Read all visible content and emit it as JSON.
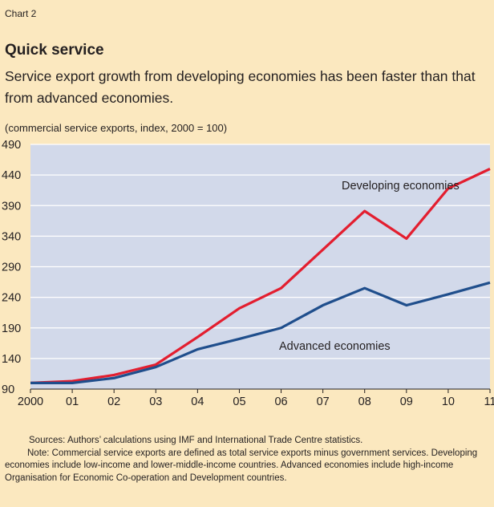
{
  "chart_label": "Chart 2",
  "title": "Quick service",
  "subtitle": "Service export growth from developing economies has been faster than that from advanced economies.",
  "units_note": "(commercial service exports, index, 2000 = 100)",
  "sources": {
    "line1": "Sources: Authors’ calculations using IMF and International Trade Centre statistics.",
    "line2": "Note: Commercial service exports are defined as total service exports minus government services. Developing economies include low-income and lower-middle-income countries. Advanced economies include high-income Organisation for Economic Co-operation and Development countries."
  },
  "colors": {
    "background": "#fbe8bf",
    "plot_area": "#d2d9ea",
    "gridline": "#ffffff",
    "developing": "#e31e2f",
    "advanced": "#1f4e8c"
  },
  "chart_data": {
    "type": "line",
    "x": [
      "2000",
      "01",
      "02",
      "03",
      "04",
      "05",
      "06",
      "07",
      "08",
      "09",
      "10",
      "11"
    ],
    "yticks": [
      90,
      140,
      190,
      240,
      290,
      340,
      390,
      440,
      490
    ],
    "ylim": [
      90,
      490
    ],
    "grid": true,
    "series": [
      {
        "name": "Developing economies",
        "color": "#e31e2f",
        "values": [
          100,
          103,
          113,
          130,
          175,
          222,
          255,
          318,
          381,
          336,
          418,
          450
        ]
      },
      {
        "name": "Advanced economies",
        "color": "#1f4e8c",
        "values": [
          100,
          100,
          108,
          126,
          155,
          172,
          190,
          227,
          255,
          227,
          245,
          264
        ]
      }
    ]
  }
}
